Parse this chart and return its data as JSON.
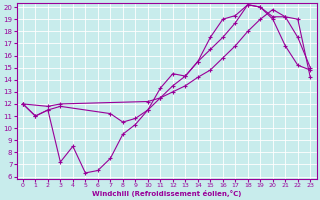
{
  "xlabel": "Windchill (Refroidissement éolien,°C)",
  "bg_color": "#c8ecec",
  "line_color": "#990099",
  "grid_color": "#ffffff",
  "xlim": [
    -0.5,
    23.5
  ],
  "ylim": [
    6,
    20
  ],
  "xticks": [
    0,
    1,
    2,
    3,
    4,
    5,
    6,
    7,
    8,
    9,
    10,
    11,
    12,
    13,
    14,
    15,
    16,
    17,
    18,
    19,
    20,
    21,
    22,
    23
  ],
  "yticks": [
    6,
    7,
    8,
    9,
    10,
    11,
    12,
    13,
    14,
    15,
    16,
    17,
    18,
    19,
    20
  ],
  "line1_x": [
    0,
    1,
    2,
    3,
    4,
    5,
    6,
    7,
    8,
    9,
    10,
    11,
    12,
    13,
    14,
    15,
    16,
    17,
    18,
    19,
    20,
    21,
    22,
    23
  ],
  "line1_y": [
    12.0,
    11.0,
    11.5,
    7.2,
    8.5,
    6.3,
    6.5,
    7.5,
    9.5,
    10.3,
    11.5,
    13.3,
    14.5,
    14.3,
    15.5,
    16.5,
    17.5,
    18.7,
    20.2,
    20.0,
    19.2,
    19.2,
    17.5,
    15.0
  ],
  "line2_x": [
    0,
    2,
    3,
    10,
    11,
    12,
    13,
    14,
    15,
    16,
    17,
    18,
    19,
    20,
    21,
    22,
    23
  ],
  "line2_y": [
    12.0,
    11.8,
    12.0,
    12.2,
    12.5,
    13.0,
    13.5,
    14.2,
    14.8,
    15.8,
    16.8,
    18.0,
    19.0,
    19.8,
    19.2,
    19.0,
    14.2
  ],
  "line3_x": [
    0,
    1,
    2,
    3,
    7,
    8,
    9,
    10,
    11,
    12,
    13,
    14,
    15,
    16,
    17,
    18,
    19,
    20,
    21,
    22,
    23
  ],
  "line3_y": [
    12.0,
    11.0,
    11.5,
    11.8,
    11.2,
    10.5,
    10.8,
    11.5,
    12.5,
    13.5,
    14.3,
    15.5,
    17.5,
    19.0,
    19.3,
    20.2,
    20.0,
    19.0,
    16.8,
    15.2,
    14.8
  ]
}
